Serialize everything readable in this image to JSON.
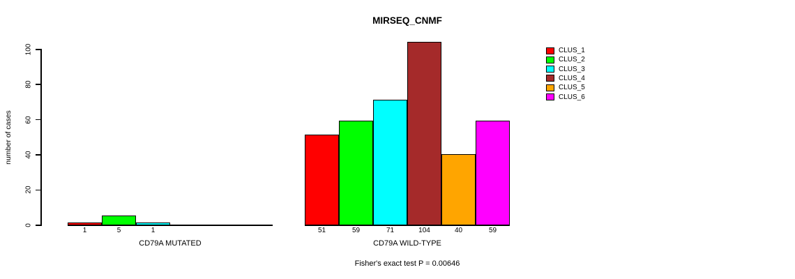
{
  "chart_data": {
    "type": "bar",
    "title": "MIRSEQ_CNMF",
    "ylabel": "number of cases",
    "footer": "Fisher's exact test P = 0.00646",
    "ylim": [
      0,
      100
    ],
    "yticks": [
      0,
      20,
      40,
      60,
      80,
      100
    ],
    "grid": false,
    "legend_position": "top-right",
    "series": [
      {
        "name": "CLUS_1",
        "color": "#FF0000"
      },
      {
        "name": "CLUS_2",
        "color": "#00FF00"
      },
      {
        "name": "CLUS_3",
        "color": "#00FFFF"
      },
      {
        "name": "CLUS_4",
        "color": "#A52A2A"
      },
      {
        "name": "CLUS_5",
        "color": "#FFA500"
      },
      {
        "name": "CLUS_6",
        "color": "#FF00FF"
      }
    ],
    "groups": [
      {
        "label": "CD79A MUTATED",
        "values": [
          1,
          5,
          1,
          0,
          0,
          0
        ]
      },
      {
        "label": "CD79A WILD-TYPE",
        "values": [
          51,
          59,
          71,
          104,
          40,
          59
        ]
      }
    ]
  }
}
